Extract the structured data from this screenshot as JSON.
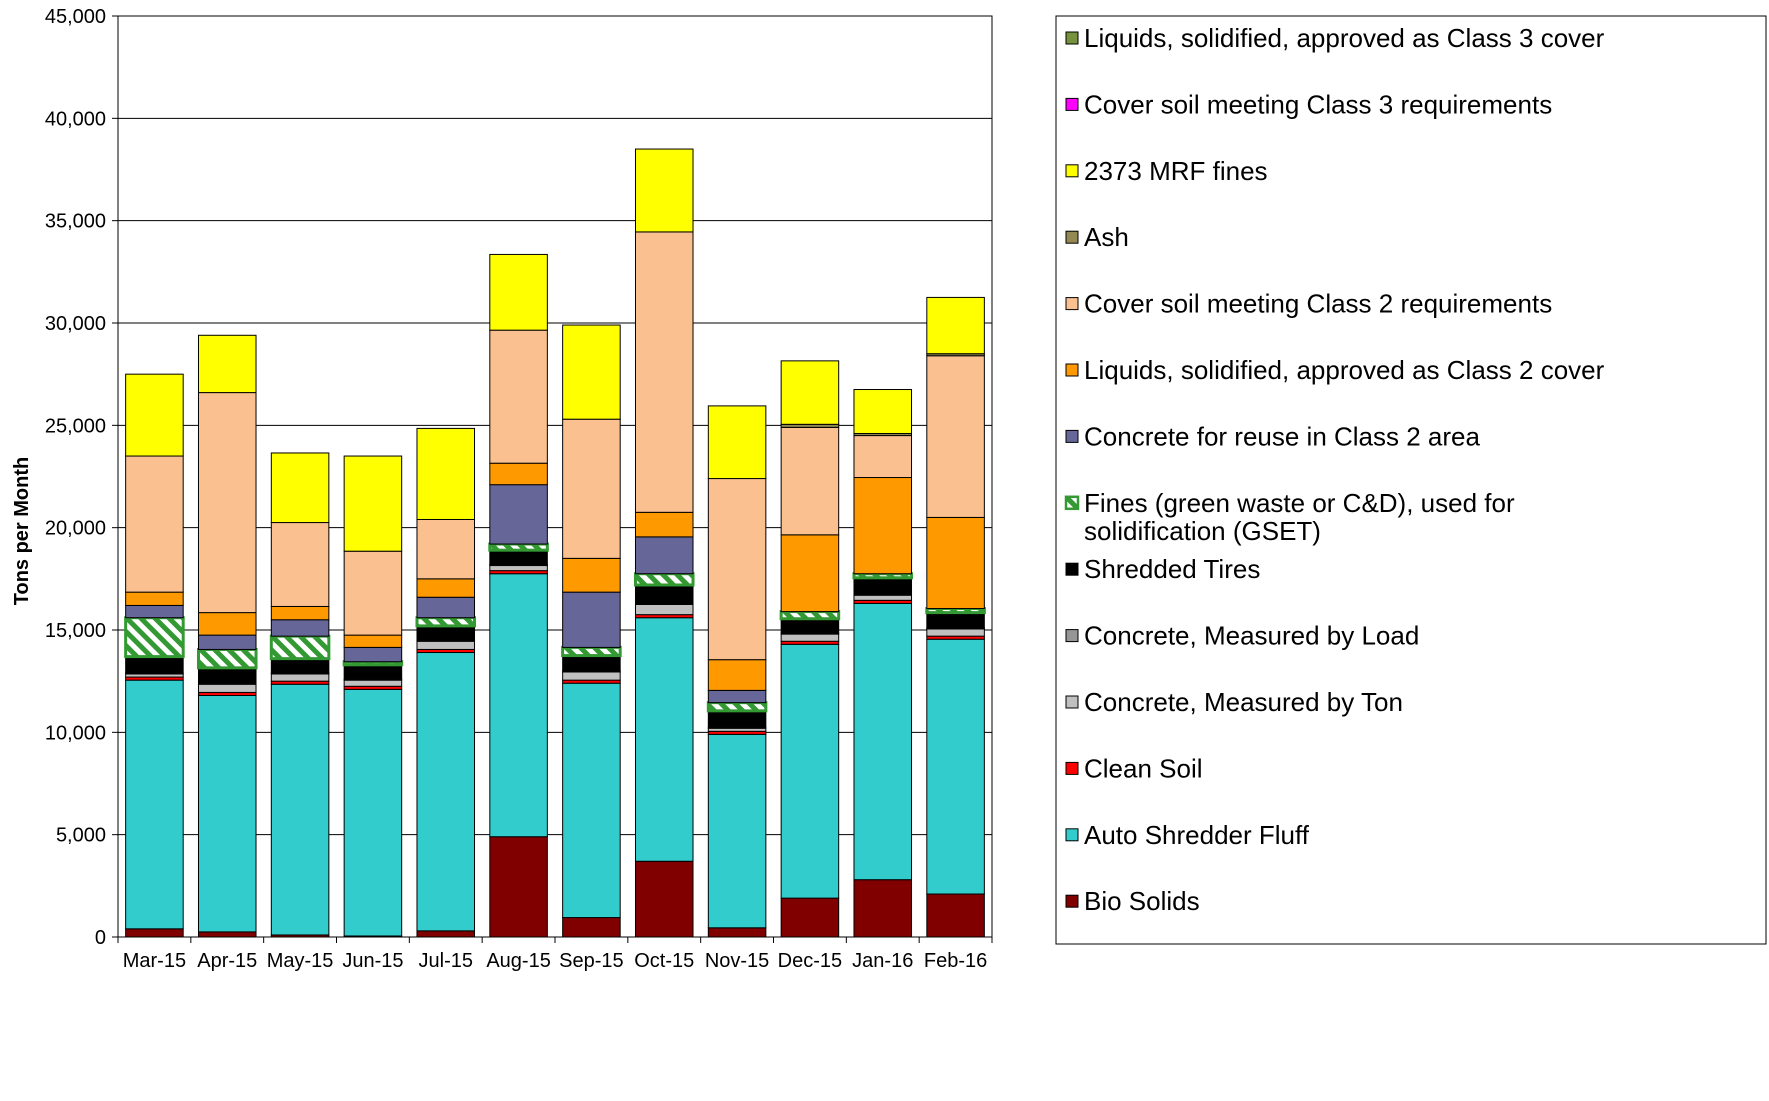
{
  "chart_data": {
    "type": "bar",
    "stacked": true,
    "title": "",
    "xlabel": "",
    "ylabel": "Tons per Month",
    "ylim": [
      0,
      45000
    ],
    "yticks": [
      0,
      5000,
      10000,
      15000,
      20000,
      25000,
      30000,
      35000,
      40000,
      45000
    ],
    "ytick_labels": [
      "0",
      "5,000",
      "10,000",
      "15,000",
      "20,000",
      "25,000",
      "30,000",
      "35,000",
      "40,000",
      "45,000"
    ],
    "grid": true,
    "legend_position": "right",
    "categories": [
      "Mar-15",
      "Apr-15",
      "May-15",
      "Jun-15",
      "Jul-15",
      "Aug-15",
      "Sep-15",
      "Oct-15",
      "Nov-15",
      "Dec-15",
      "Jan-16",
      "Feb-16"
    ],
    "series": [
      {
        "name": "Bio Solids",
        "color": "#800000",
        "pattern": "solid",
        "values": [
          400,
          250,
          100,
          50,
          300,
          4900,
          950,
          3700,
          450,
          1900,
          2800,
          2100
        ]
      },
      {
        "name": "Auto Shredder Fluff",
        "color": "#33cccc",
        "pattern": "solid",
        "values": [
          12150,
          11550,
          12250,
          12050,
          13600,
          12850,
          11450,
          11900,
          9450,
          12400,
          13500,
          12450
        ]
      },
      {
        "name": "Clean Soil",
        "color": "#ff0000",
        "pattern": "solid",
        "values": [
          150,
          150,
          150,
          150,
          150,
          150,
          150,
          150,
          150,
          150,
          150,
          150
        ]
      },
      {
        "name": "Concrete, Measured by Ton",
        "color": "#c0c0c0",
        "pattern": "solid",
        "values": [
          150,
          400,
          350,
          300,
          400,
          250,
          400,
          500,
          150,
          350,
          250,
          350
        ]
      },
      {
        "name": "Concrete, Measured by Load",
        "color": "#969696",
        "pattern": "solid",
        "values": [
          50,
          50,
          50,
          50,
          50,
          50,
          50,
          50,
          50,
          50,
          50,
          50
        ]
      },
      {
        "name": "Shredded Tires",
        "color": "#000000",
        "pattern": "solid",
        "values": [
          800,
          750,
          700,
          700,
          700,
          700,
          750,
          900,
          800,
          700,
          800,
          750
        ]
      },
      {
        "name": "Fines (green waste or C&D), used for solidification (GSET)",
        "color": "#339933",
        "pattern": "hatch",
        "values": [
          1900,
          900,
          1100,
          150,
          400,
          300,
          400,
          550,
          400,
          350,
          200,
          200
        ]
      },
      {
        "name": "Concrete for reuse in Class 2 area",
        "color": "#666699",
        "pattern": "solid",
        "values": [
          600,
          700,
          800,
          700,
          1000,
          2900,
          2700,
          1800,
          600,
          0,
          0,
          0
        ]
      },
      {
        "name": "Liquids, solidified, approved as Class 2 cover",
        "color": "#ff9900",
        "pattern": "solid",
        "values": [
          650,
          1100,
          650,
          600,
          900,
          1050,
          1650,
          1200,
          1500,
          3750,
          4700,
          4450
        ]
      },
      {
        "name": "Cover soil meeting Class 2 requirements",
        "color": "#fac090",
        "pattern": "solid",
        "values": [
          6650,
          10750,
          4100,
          4100,
          2900,
          6500,
          6800,
          13700,
          8850,
          5250,
          2050,
          7900
        ]
      },
      {
        "name": "Ash",
        "color": "#938953",
        "pattern": "solid",
        "values": [
          0,
          0,
          0,
          0,
          0,
          0,
          0,
          0,
          0,
          150,
          100,
          100
        ]
      },
      {
        "name": "2373 MRF fines",
        "color": "#ffff00",
        "pattern": "solid",
        "values": [
          4000,
          2800,
          3400,
          4650,
          4450,
          3700,
          4600,
          4050,
          3550,
          3100,
          2150,
          2750
        ]
      },
      {
        "name": "Cover soil meeting Class 3 requirements",
        "color": "#ff00ff",
        "pattern": "solid",
        "values": [
          0,
          0,
          0,
          0,
          0,
          0,
          0,
          0,
          0,
          0,
          0,
          0
        ]
      },
      {
        "name": "Liquids, solidified, approved as Class 3 cover",
        "color": "#76923c",
        "pattern": "solid",
        "values": [
          0,
          0,
          0,
          0,
          0,
          0,
          0,
          0,
          0,
          0,
          0,
          0
        ]
      }
    ]
  }
}
